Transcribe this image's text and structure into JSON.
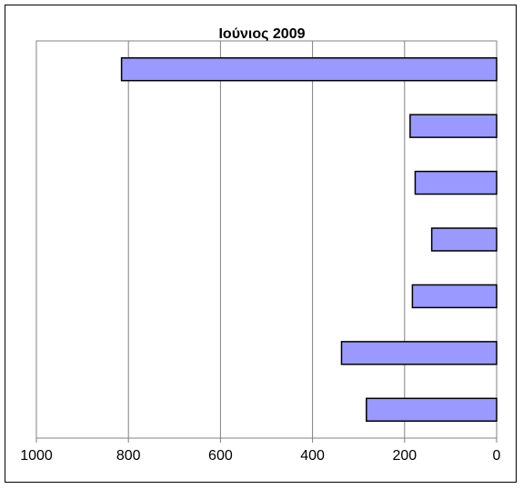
{
  "chart_data": {
    "type": "bar",
    "orientation": "horizontal",
    "title": "Ιούνιος 2009",
    "xlabel": "",
    "ylabel": "",
    "x_axis": {
      "reversed": true,
      "range": [
        0,
        1000
      ],
      "ticks": [
        1000,
        800,
        600,
        400,
        200,
        0
      ],
      "tick_labels": [
        "1000",
        "800",
        "600",
        "400",
        "200",
        "0"
      ]
    },
    "gridlines": "vertical",
    "category_labels_visible": false,
    "values": [
      815,
      188,
      177,
      141,
      183,
      337,
      283
    ],
    "colors": {
      "bar_fill": "#9999ff",
      "bar_stroke": "#000000",
      "grid": "#808080",
      "axis": "#808080"
    }
  }
}
